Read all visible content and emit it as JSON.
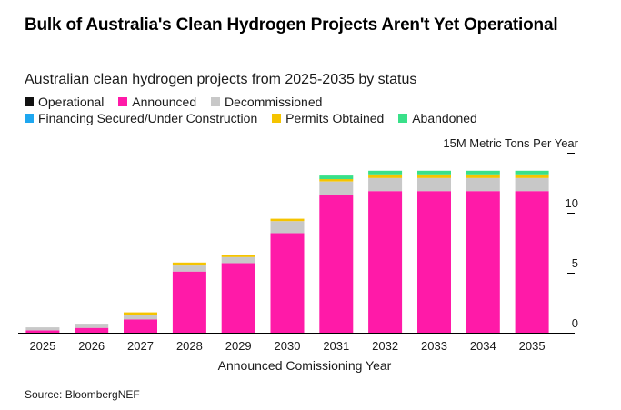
{
  "header": {
    "title": "Bulk of Australia's Clean Hydrogen Projects Aren't Yet Operational",
    "subtitle": "Australian clean hydrogen projects from 2025-2035 by status"
  },
  "footer": {
    "source": "Source: BloombergNEF"
  },
  "chart_data": {
    "type": "bar",
    "stacked": true,
    "categories": [
      "2025",
      "2026",
      "2027",
      "2028",
      "2029",
      "2030",
      "2031",
      "2032",
      "2033",
      "2034",
      "2035"
    ],
    "xlabel": "Announced Comissioning Year",
    "ylabel": "",
    "y_unit_label": "15M Metric Tons Per Year",
    "ylim": [
      0,
      15
    ],
    "y_ticks": [
      0,
      5,
      10
    ],
    "y_tick_labels": [
      "0",
      "5",
      "10"
    ],
    "grid": false,
    "legend_position": "top-left",
    "series": [
      {
        "name": "Operational",
        "color": "#111111",
        "values": [
          0,
          0,
          0,
          0,
          0,
          0,
          0,
          0,
          0,
          0,
          0
        ]
      },
      {
        "name": "Announced",
        "color": "#ff1aa8",
        "values": [
          0.2,
          0.4,
          1.1,
          5.1,
          5.8,
          8.3,
          11.5,
          11.8,
          11.8,
          11.8,
          11.8
        ]
      },
      {
        "name": "Decommissioned",
        "color": "#c8c8c8",
        "values": [
          0.25,
          0.35,
          0.4,
          0.5,
          0.5,
          1.0,
          1.1,
          1.1,
          1.1,
          1.1,
          1.1
        ]
      },
      {
        "name": "Financing Secured/Under Construction",
        "color": "#1ea7f0",
        "values": [
          0,
          0,
          0,
          0,
          0,
          0,
          0,
          0,
          0,
          0,
          0
        ]
      },
      {
        "name": "Permits Obtained",
        "color": "#f5c400",
        "values": [
          0,
          0,
          0.2,
          0.25,
          0.2,
          0.2,
          0.2,
          0.3,
          0.3,
          0.3,
          0.3
        ]
      },
      {
        "name": "Abandoned",
        "color": "#39e089",
        "values": [
          0,
          0,
          0,
          0,
          0,
          0,
          0.3,
          0.3,
          0.3,
          0.3,
          0.3
        ]
      }
    ]
  }
}
